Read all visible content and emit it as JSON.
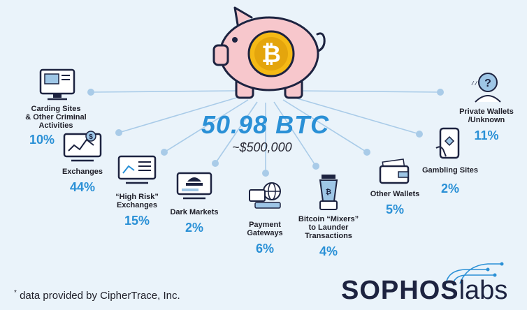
{
  "headline": {
    "btc_total": "50.98 BTC",
    "usd_approx": "~$500,000"
  },
  "destinations": [
    {
      "id": "carding",
      "label": [
        "Carding Sites",
        "& Other Criminal",
        "Activities"
      ],
      "percent": "10%",
      "icon": "monitor-cards-icon"
    },
    {
      "id": "exchanges",
      "label": [
        "Exchanges"
      ],
      "percent": "44%",
      "icon": "exchange-chart-monitor-icon"
    },
    {
      "id": "high-risk",
      "label": [
        "“High Risk”",
        "Exchanges"
      ],
      "percent": "15%",
      "icon": "high-risk-chart-monitor-icon"
    },
    {
      "id": "dark-markets",
      "label": [
        "Dark Markets"
      ],
      "percent": "2%",
      "icon": "dark-market-spy-icon"
    },
    {
      "id": "payment-gateways",
      "label": [
        "Payment",
        "Gateways"
      ],
      "percent": "6%",
      "icon": "payment-gateway-globe-icon"
    },
    {
      "id": "mixers",
      "label": [
        "Bitcoin “Mixers”",
        "to Launder",
        "Transactions"
      ],
      "percent": "4%",
      "icon": "blender-mixer-icon"
    },
    {
      "id": "other-wallets",
      "label": [
        "Other Wallets"
      ],
      "percent": "5%",
      "icon": "wallet-icon"
    },
    {
      "id": "gambling",
      "label": [
        "Gambling Sites"
      ],
      "percent": "2%",
      "icon": "phone-gambling-icon"
    },
    {
      "id": "private-wallets",
      "label": [
        "Private Wallets",
        "/Unknown"
      ],
      "percent": "11%",
      "icon": "unknown-person-icon"
    }
  ],
  "footnote": {
    "mark": "*",
    "text_prefix": " data provided by ",
    "text_source": "CipherTrace, Inc."
  },
  "brand": {
    "part1": "SOPHOS",
    "part2": "labs"
  },
  "colors": {
    "background": "#eaf3fa",
    "accent_blue": "#2a90d6",
    "connector_blue": "#a9cbe8",
    "piggy_pink": "#f7c7cc",
    "coin_gold": "#f5b915",
    "dark": "#1d2340"
  }
}
